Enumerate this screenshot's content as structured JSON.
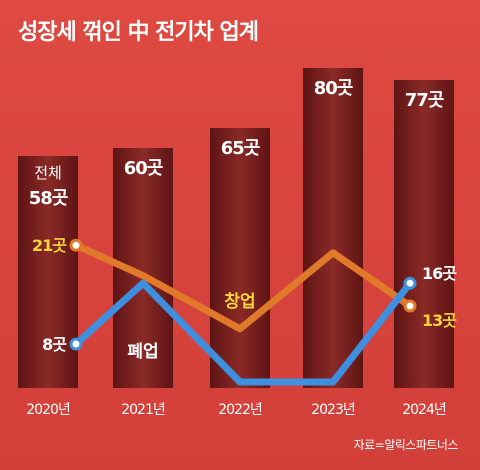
{
  "title": "성장세 꺾인 中 전기차 업계",
  "source": "자료=알릭스파트너스",
  "colors": {
    "bar": "#7a1e1e",
    "startup": "#e07a2a",
    "closed": "#3f8fe0",
    "background": "#d9443e"
  },
  "chart_data": {
    "type": "bar",
    "categories": [
      "2020년",
      "2021년",
      "2022년",
      "2023년",
      "2024년"
    ],
    "series": [
      {
        "name": "전체",
        "values": [
          58,
          60,
          65,
          80,
          77
        ],
        "value_labels": [
          "58곳",
          "60곳",
          "65곳",
          "80곳",
          "77곳"
        ]
      },
      {
        "name": "창업",
        "values": [
          21,
          17,
          10,
          20,
          13
        ],
        "value_labels": [
          "21곳",
          "",
          "",
          "",
          "13곳"
        ]
      },
      {
        "name": "폐업",
        "values": [
          8,
          16,
          3,
          3,
          16
        ],
        "value_labels": [
          "8곳",
          "",
          "",
          "",
          "16곳"
        ]
      }
    ],
    "ylim": [
      0,
      85
    ]
  }
}
